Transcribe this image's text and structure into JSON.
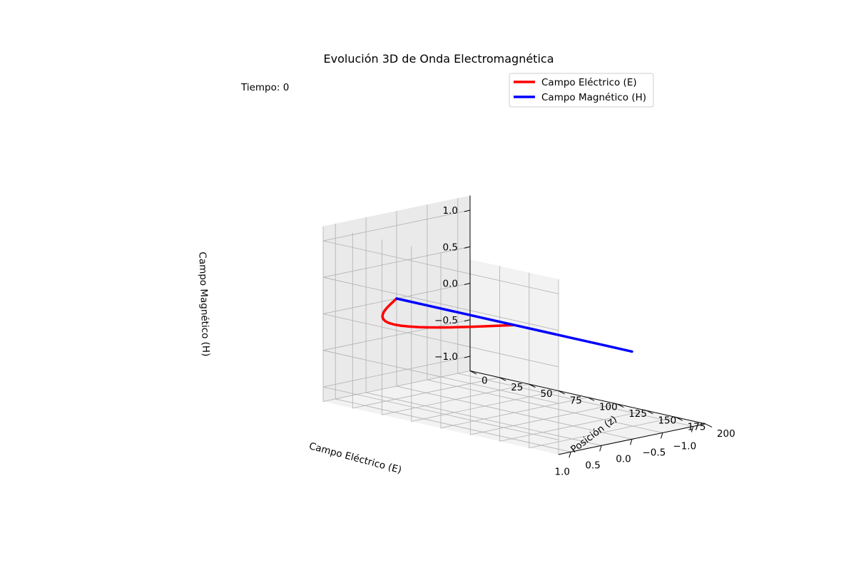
{
  "chart_data": {
    "type": "line3d",
    "title": "Evolución 3D de Onda Electromagnética",
    "annotation": "Tiempo: 0",
    "xlabel": "Posición (z)",
    "ylabel": "Campo Eléctrico (E)",
    "zlabel": "Campo Magnético (H)",
    "xlim": [
      0,
      200
    ],
    "ylim": [
      -1.2,
      1.2
    ],
    "zlim": [
      -1.2,
      1.2
    ],
    "x_ticks": [
      0,
      25,
      50,
      75,
      100,
      125,
      150,
      175,
      200
    ],
    "x_tick_labels": [
      "0",
      "25",
      "50",
      "75",
      "100",
      "125",
      "150",
      "175",
      "200"
    ],
    "y_ticks": [
      -1.0,
      -0.5,
      0.0,
      0.5,
      1.0
    ],
    "y_tick_labels": [
      "−1.0",
      "−0.5",
      "0.0",
      "0.5",
      "1.0"
    ],
    "z_ticks": [
      -1.0,
      -0.5,
      0.0,
      0.5,
      1.0
    ],
    "z_tick_labels": [
      "−1.0",
      "−0.5",
      "0.0",
      "0.5",
      "1.0"
    ],
    "series": [
      {
        "name": "Campo Eléctrico (E)",
        "color": "#ff0000",
        "x": [
          0,
          5,
          10,
          15,
          20,
          25,
          30,
          35,
          40,
          45,
          50,
          55,
          60,
          65,
          70,
          75,
          80,
          85,
          90,
          95,
          100
        ],
        "y": [
          0.0,
          0.156,
          0.309,
          0.454,
          0.588,
          0.707,
          0.809,
          0.891,
          0.951,
          0.988,
          1.0,
          0.988,
          0.951,
          0.891,
          0.809,
          0.707,
          0.588,
          0.454,
          0.309,
          0.156,
          0.0
        ],
        "z": [
          0,
          0,
          0,
          0,
          0,
          0,
          0,
          0,
          0,
          0,
          0,
          0,
          0,
          0,
          0,
          0,
          0,
          0,
          0,
          0,
          0
        ]
      },
      {
        "name": "Campo Magnético (H)",
        "color": "#0000ff",
        "x": [
          0,
          25,
          50,
          75,
          100,
          125,
          150,
          175,
          200
        ],
        "y": [
          0,
          0,
          0,
          0,
          0,
          0,
          0,
          0,
          0
        ],
        "z": [
          0,
          0,
          0,
          0,
          0,
          0,
          0,
          0,
          0
        ]
      }
    ],
    "legend_position": "top-right"
  },
  "colors": {
    "pane": "#f2f2f2",
    "grid": "#b0b0b0",
    "e_field": "#ff0000",
    "h_field": "#0000ff"
  }
}
